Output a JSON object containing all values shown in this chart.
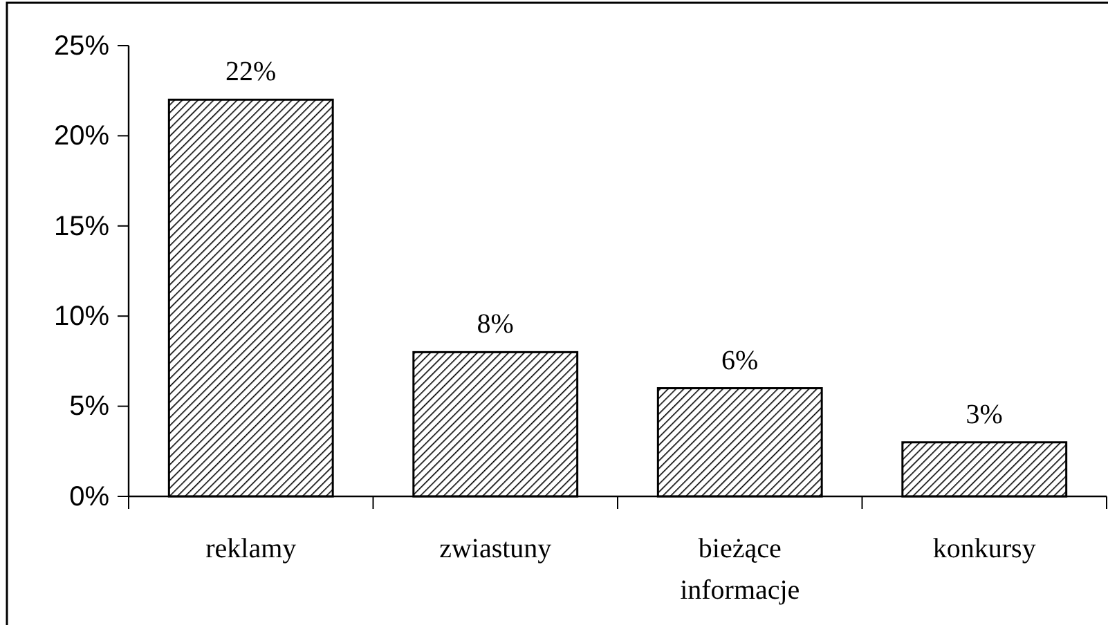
{
  "chart_data": {
    "type": "bar",
    "categories": [
      "reklamy",
      "zwiastuny",
      "bieżące informacje",
      "konkursy"
    ],
    "values": [
      22,
      8,
      6,
      3
    ],
    "color": "#000000",
    "value_labels": [
      "22%",
      "8%",
      "6%",
      "3%"
    ],
    "ylim": [
      0,
      25
    ],
    "yticks": [
      {
        "value": 0,
        "label": "0%"
      },
      {
        "value": 5,
        "label": "5%"
      },
      {
        "value": 10,
        "label": "10%"
      },
      {
        "value": 15,
        "label": "15%"
      },
      {
        "value": 20,
        "label": "20%"
      },
      {
        "value": 25,
        "label": "25%"
      }
    ],
    "grid": false
  }
}
